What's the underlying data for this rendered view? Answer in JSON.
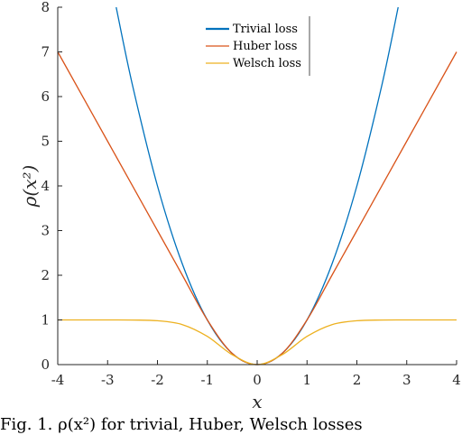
{
  "chart_data": {
    "type": "line",
    "xlabel": "x",
    "ylabel": "ρ(x²)",
    "xlim": [
      -4,
      4
    ],
    "ylim": [
      0,
      8
    ],
    "xticks": [
      -4,
      -3,
      -2,
      -1,
      0,
      1,
      2,
      3,
      4
    ],
    "yticks": [
      0,
      1,
      2,
      3,
      4,
      5,
      6,
      7,
      8
    ],
    "grid": false,
    "legend_position": "top-center",
    "series": [
      {
        "name": "Trivial loss",
        "color": "#0072BD",
        "x": [
          -2.828,
          -2.5,
          -2,
          -1.5,
          -1,
          -0.5,
          0,
          0.5,
          1,
          1.5,
          2,
          2.5,
          2.828
        ],
        "y": [
          8,
          6.25,
          4,
          2.25,
          1,
          0.25,
          0,
          0.25,
          1,
          2.25,
          4,
          6.25,
          8
        ]
      },
      {
        "name": "Huber loss",
        "color": "#D95319",
        "x": [
          -4,
          -3,
          -2,
          -1.5,
          -1,
          -0.5,
          0,
          0.5,
          1,
          1.5,
          2,
          3,
          4
        ],
        "y": [
          7,
          5,
          3,
          2,
          1,
          0.25,
          0,
          0.25,
          1,
          2,
          3,
          5,
          7
        ]
      },
      {
        "name": "Welsch loss",
        "color": "#EDB120",
        "x": [
          -4,
          -3,
          -2.5,
          -2,
          -1.5,
          -1,
          -0.5,
          0,
          0.5,
          1,
          1.5,
          2,
          2.5,
          3,
          4
        ],
        "y": [
          1,
          1,
          0.998,
          0.982,
          0.895,
          0.632,
          0.221,
          0,
          0.221,
          0.632,
          0.895,
          0.982,
          0.998,
          1,
          1
        ]
      }
    ]
  },
  "caption": "Fig. 1.   ρ(x²) for trivial, Huber, Welsch losses"
}
